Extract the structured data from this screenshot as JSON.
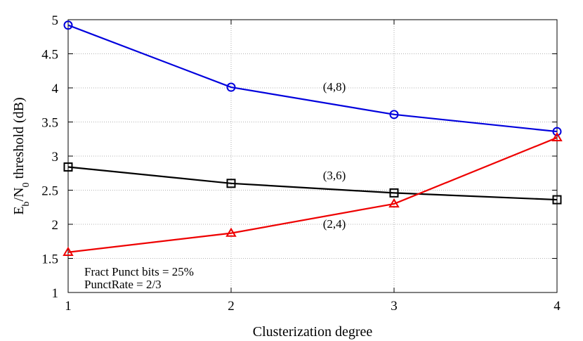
{
  "chart_data": {
    "type": "line",
    "xlabel": "Clusterization degree",
    "ylabel_parts": {
      "main_e": "E",
      "sub_b": "b",
      "slash_n": "/N",
      "sub_0": "0",
      "rest": " threshold (dB)"
    },
    "xlim": [
      1,
      4
    ],
    "ylim": [
      1,
      5
    ],
    "x_ticks": [
      1,
      2,
      3,
      4
    ],
    "y_ticks": [
      1,
      1.5,
      2,
      2.5,
      3,
      3.5,
      4,
      4.5,
      5
    ],
    "x_tick_labels": [
      "1",
      "2",
      "3",
      "4"
    ],
    "y_tick_labels": [
      "1",
      "1.5",
      "2",
      "2.5",
      "3",
      "3.5",
      "4",
      "4.5",
      "5"
    ],
    "grid": true,
    "x": [
      1,
      2,
      3,
      4
    ],
    "series": [
      {
        "label": "(4,8)",
        "values": [
          4.92,
          4.01,
          3.61,
          3.36
        ],
        "color": "#0000dd",
        "marker": "circle"
      },
      {
        "label": "(3,6)",
        "values": [
          2.84,
          2.6,
          2.46,
          2.36
        ],
        "color": "#000000",
        "marker": "square"
      },
      {
        "label": "(2,4)",
        "values": [
          1.59,
          1.87,
          2.3,
          3.27
        ],
        "color": "#ee0000",
        "marker": "triangle"
      }
    ],
    "annotations": [
      "Fract Punct bits = 25%",
      "PunctRate = 2/3"
    ]
  }
}
